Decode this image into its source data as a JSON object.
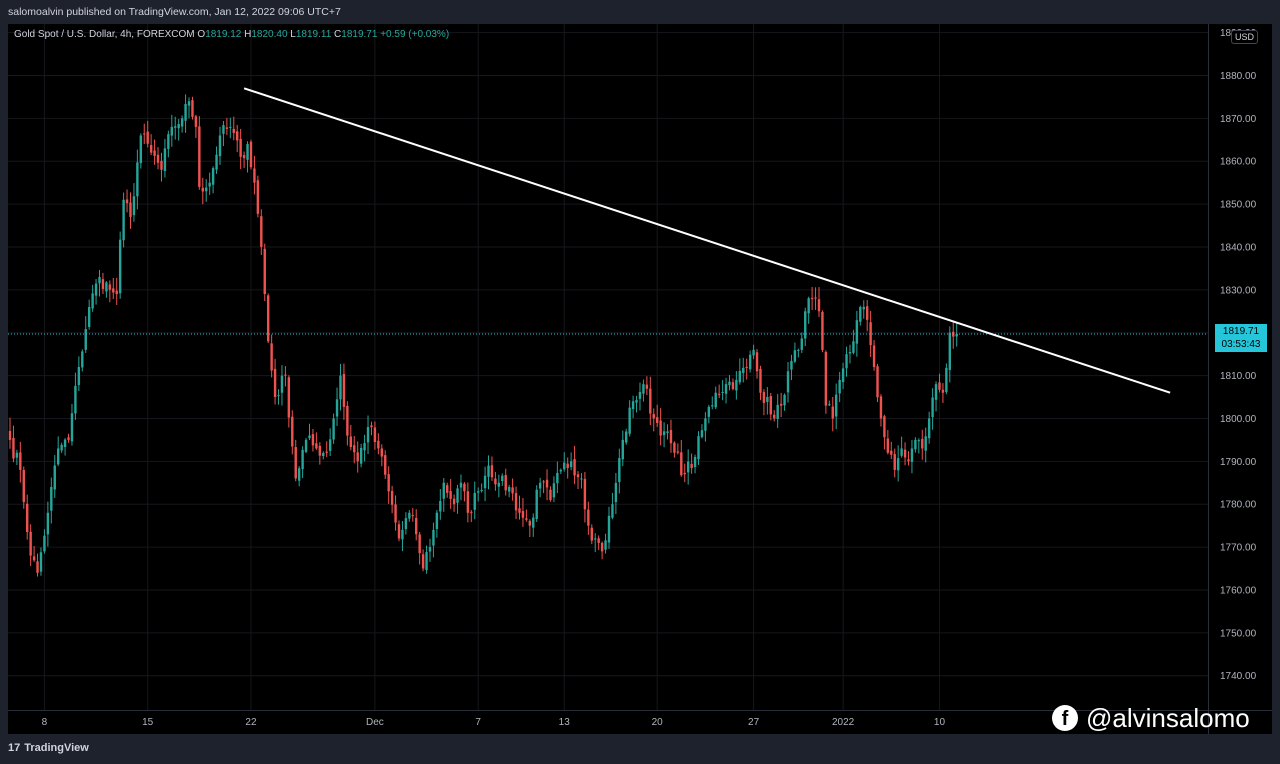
{
  "header": {
    "published": "salomoalvin published on TradingView.com, Jan 12, 2022 09:06 UTC+7"
  },
  "legend": {
    "symbol": "Gold Spot / U.S. Dollar, 4h, FOREXCOM",
    "o_label": "O",
    "o": "1819.12",
    "h_label": "H",
    "h": "1820.40",
    "l_label": "L",
    "l": "1819.11",
    "c_label": "C",
    "c": "1819.71",
    "change": "+0.59 (+0.03%)"
  },
  "currency": "USD",
  "price_label": {
    "price": "1819.71",
    "countdown": "03:53:43"
  },
  "footer": {
    "brand": "TradingView",
    "brand_mark": "17"
  },
  "watermark": {
    "icon": "f",
    "handle": "@alvinsalomo"
  },
  "colors": {
    "up": "#26a69a",
    "down": "#ef5350",
    "trendline": "#ffffff",
    "current_price": "#26c6da"
  },
  "chart_data": {
    "type": "candlestick",
    "y_axis": {
      "min": 1732,
      "max": 1892,
      "ticks": [
        1740,
        1750,
        1760,
        1770,
        1780,
        1790,
        1800,
        1810,
        1820,
        1830,
        1840,
        1850,
        1860,
        1870,
        1880,
        1890
      ]
    },
    "x_ticks": [
      {
        "label": "8",
        "i": 10
      },
      {
        "label": "15",
        "i": 40
      },
      {
        "label": "22",
        "i": 70
      },
      {
        "label": "Dec",
        "i": 106
      },
      {
        "label": "7",
        "i": 136
      },
      {
        "label": "13",
        "i": 161
      },
      {
        "label": "20",
        "i": 188
      },
      {
        "label": "27",
        "i": 216
      },
      {
        "label": "2022",
        "i": 242
      },
      {
        "label": "10",
        "i": 270
      }
    ],
    "total_slots": 348,
    "current_price": 1819.71,
    "trendline": {
      "i1": 68,
      "p1": 1877,
      "i2": 337,
      "p2": 1806
    },
    "close_path": [
      [
        0,
        1795
      ],
      [
        3,
        1788
      ],
      [
        6,
        1768
      ],
      [
        8,
        1764
      ],
      [
        11,
        1778
      ],
      [
        14,
        1793
      ],
      [
        17,
        1795
      ],
      [
        20,
        1812
      ],
      [
        23,
        1826
      ],
      [
        26,
        1833
      ],
      [
        29,
        1830
      ],
      [
        31,
        1829
      ],
      [
        33,
        1851
      ],
      [
        35,
        1847
      ],
      [
        38,
        1866
      ],
      [
        41,
        1862
      ],
      [
        44,
        1858
      ],
      [
        47,
        1868
      ],
      [
        50,
        1870
      ],
      [
        52,
        1874
      ],
      [
        54,
        1868
      ],
      [
        55,
        1854
      ],
      [
        58,
        1855
      ],
      [
        61,
        1866
      ],
      [
        64,
        1868
      ],
      [
        67,
        1861
      ],
      [
        69,
        1864
      ],
      [
        71,
        1855
      ],
      [
        73,
        1840
      ],
      [
        75,
        1818
      ],
      [
        77,
        1805
      ],
      [
        80,
        1810
      ],
      [
        83,
        1786
      ],
      [
        86,
        1795
      ],
      [
        89,
        1793
      ],
      [
        92,
        1792
      ],
      [
        94,
        1800
      ],
      [
        96,
        1810
      ],
      [
        98,
        1796
      ],
      [
        101,
        1790
      ],
      [
        104,
        1798
      ],
      [
        107,
        1793
      ],
      [
        110,
        1783
      ],
      [
        113,
        1772
      ],
      [
        116,
        1778
      ],
      [
        118,
        1773
      ],
      [
        120,
        1765
      ],
      [
        123,
        1774
      ],
      [
        126,
        1785
      ],
      [
        129,
        1780
      ],
      [
        131,
        1785
      ],
      [
        133,
        1778
      ],
      [
        136,
        1783
      ],
      [
        139,
        1789
      ],
      [
        142,
        1785
      ],
      [
        145,
        1784
      ],
      [
        148,
        1778
      ],
      [
        151,
        1775
      ],
      [
        154,
        1785
      ],
      [
        157,
        1781
      ],
      [
        160,
        1788
      ],
      [
        163,
        1790
      ],
      [
        166,
        1786
      ],
      [
        168,
        1775
      ],
      [
        170,
        1772
      ],
      [
        172,
        1769
      ],
      [
        175,
        1780
      ],
      [
        178,
        1795
      ],
      [
        181,
        1804
      ],
      [
        184,
        1808
      ],
      [
        187,
        1800
      ],
      [
        190,
        1797
      ],
      [
        193,
        1792
      ],
      [
        196,
        1787
      ],
      [
        199,
        1791
      ],
      [
        202,
        1800
      ],
      [
        205,
        1806
      ],
      [
        208,
        1808
      ],
      [
        211,
        1809
      ],
      [
        214,
        1812
      ],
      [
        216,
        1816
      ],
      [
        218,
        1806
      ],
      [
        220,
        1805
      ],
      [
        222,
        1800
      ],
      [
        224,
        1803
      ],
      [
        226,
        1811
      ],
      [
        229,
        1816
      ],
      [
        231,
        1825
      ],
      [
        233,
        1828
      ],
      [
        235,
        1825
      ],
      [
        237,
        1803
      ],
      [
        239,
        1800
      ],
      [
        241,
        1809
      ],
      [
        243,
        1815
      ],
      [
        245,
        1818
      ],
      [
        247,
        1826
      ],
      [
        249,
        1823
      ],
      [
        251,
        1812
      ],
      [
        253,
        1800
      ],
      [
        255,
        1792
      ],
      [
        257,
        1788
      ],
      [
        259,
        1793
      ],
      [
        261,
        1790
      ],
      [
        263,
        1795
      ],
      [
        265,
        1793
      ],
      [
        267,
        1800
      ],
      [
        269,
        1808
      ],
      [
        271,
        1806
      ],
      [
        273,
        1820
      ],
      [
        275,
        1819.71
      ]
    ]
  }
}
